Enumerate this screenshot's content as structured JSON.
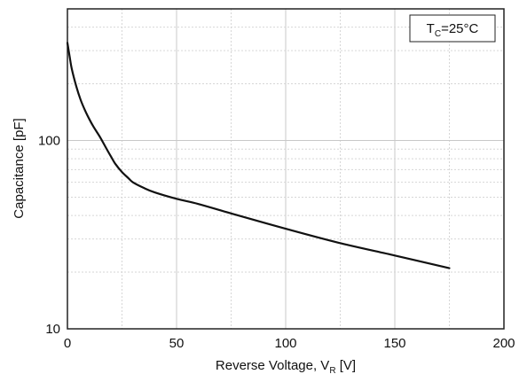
{
  "chart_data": {
    "type": "line",
    "xlabel": "Reverse Voltage, V",
    "xlabel_sub": "R",
    "xlabel_unit": " [V]",
    "ylabel": "Capacitance [pF]",
    "x_scale": "linear",
    "y_scale": "log",
    "xlim": [
      0,
      200
    ],
    "ylim": [
      10,
      500
    ],
    "x_ticks": [
      0,
      50,
      100,
      150,
      200
    ],
    "x_tick_labels": [
      "0",
      "50",
      "100",
      "150",
      "200"
    ],
    "y_ticks": [
      10,
      100
    ],
    "y_tick_labels": [
      "10",
      "100"
    ],
    "grid": true,
    "annotation": {
      "main": "T",
      "sub": "C",
      "rest": "=25°C",
      "placement": "top-right"
    },
    "series": [
      {
        "x": [
          0,
          1,
          2,
          4,
          6,
          8,
          10,
          12,
          15,
          18,
          20,
          22,
          25,
          28,
          30,
          35,
          40,
          50,
          60,
          75,
          100,
          125,
          150,
          175
        ],
        "y": [
          330,
          280,
          240,
          195,
          165,
          145,
          130,
          118,
          104,
          90,
          82,
          75,
          68,
          63,
          60,
          56,
          53,
          49,
          46,
          41,
          34,
          28.5,
          24.5,
          21
        ]
      }
    ]
  }
}
